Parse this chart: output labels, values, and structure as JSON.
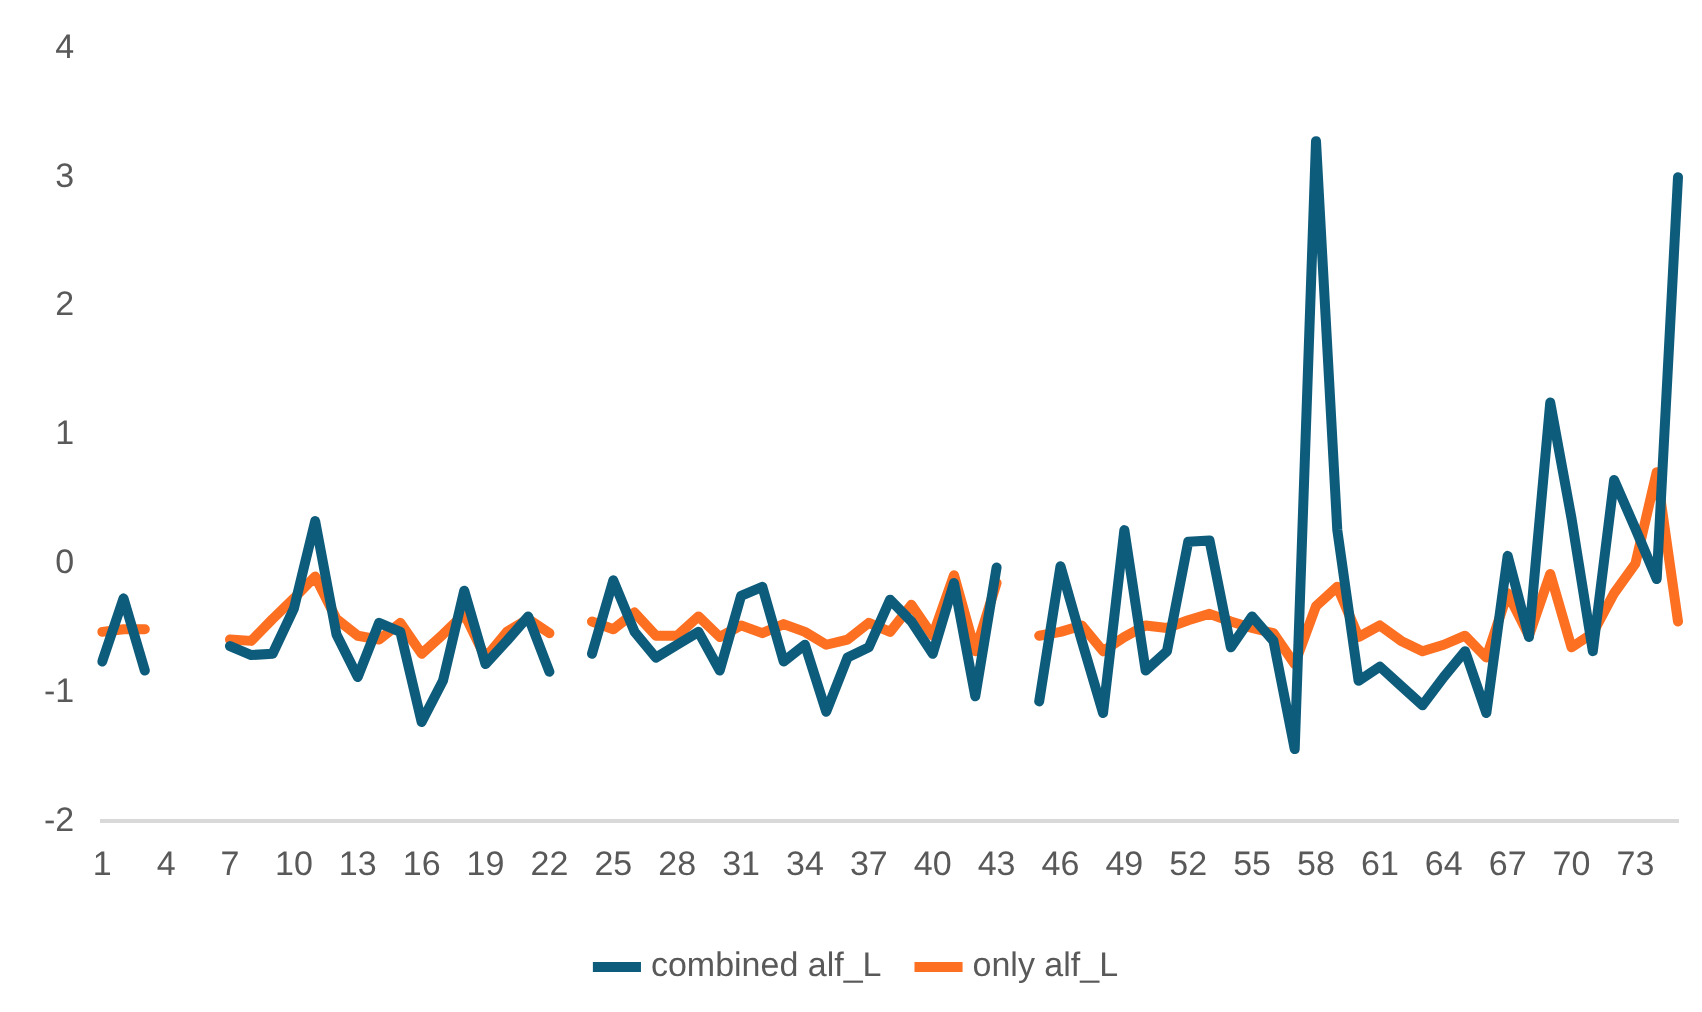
{
  "chart_data": {
    "type": "line",
    "categories": [
      "1",
      null,
      null,
      "4",
      null,
      null,
      "7",
      null,
      null,
      "10",
      null,
      null,
      "13",
      null,
      null,
      "16",
      null,
      null,
      "19",
      null,
      null,
      "22",
      null,
      null,
      "25",
      null,
      null,
      "28",
      null,
      null,
      "31",
      null,
      null,
      "34",
      null,
      null,
      "37",
      null,
      null,
      "40",
      null,
      null,
      "43",
      null,
      null,
      "46",
      null,
      null,
      "49",
      null,
      null,
      "52",
      null,
      null,
      "55",
      null,
      null,
      "58",
      null,
      null,
      "61",
      null,
      null,
      "64",
      null,
      null,
      "67",
      null,
      null,
      "70",
      null,
      null,
      "73",
      null,
      null
    ],
    "series": [
      {
        "name": "combined alf_L",
        "color": "#0e5c7c",
        "values": [
          -0.76,
          -0.27,
          -0.83,
          null,
          null,
          null,
          -0.64,
          -0.71,
          -0.7,
          -0.35,
          0.33,
          -0.55,
          -0.88,
          -0.46,
          -0.53,
          -1.23,
          -0.91,
          -0.21,
          -0.78,
          -0.6,
          -0.41,
          -0.84,
          null,
          -0.7,
          -0.13,
          -0.53,
          -0.73,
          -0.63,
          -0.53,
          -0.83,
          -0.25,
          -0.18,
          -0.76,
          -0.63,
          -1.15,
          -0.73,
          -0.65,
          -0.28,
          -0.45,
          -0.7,
          -0.15,
          -1.03,
          -0.03,
          null,
          -1.07,
          -0.02,
          -0.6,
          -1.16,
          0.26,
          -0.83,
          -0.68,
          0.17,
          0.18,
          -0.65,
          -0.41,
          -0.6,
          -1.44,
          3.28,
          0.26,
          -0.91,
          -0.8,
          -0.95,
          -1.1,
          -0.88,
          -0.68,
          -1.16,
          0.06,
          -0.57,
          1.25,
          0.35,
          -0.68,
          0.65,
          0.27,
          -0.12,
          3.0
        ]
      },
      {
        "name": "only alf_L",
        "color": "#fd6f21",
        "values": [
          -0.53,
          -0.51,
          -0.51,
          null,
          null,
          null,
          -0.59,
          -0.6,
          -0.43,
          -0.27,
          -0.1,
          -0.43,
          -0.56,
          -0.59,
          -0.46,
          -0.7,
          -0.55,
          -0.39,
          -0.73,
          -0.53,
          -0.43,
          -0.54,
          null,
          -0.45,
          -0.51,
          -0.38,
          -0.56,
          -0.56,
          -0.41,
          -0.57,
          -0.48,
          -0.54,
          -0.47,
          -0.53,
          -0.63,
          -0.59,
          -0.46,
          -0.53,
          -0.32,
          -0.56,
          -0.09,
          -0.68,
          -0.15,
          null,
          -0.56,
          -0.53,
          -0.48,
          -0.68,
          -0.57,
          -0.48,
          -0.5,
          -0.44,
          -0.39,
          -0.45,
          -0.5,
          -0.54,
          -0.78,
          -0.33,
          -0.18,
          -0.57,
          -0.48,
          -0.6,
          -0.68,
          -0.63,
          -0.56,
          -0.73,
          -0.23,
          -0.56,
          -0.08,
          -0.65,
          -0.54,
          -0.23,
          0.0,
          0.71,
          -0.45
        ]
      }
    ],
    "ylim": [
      -2,
      4
    ],
    "yticks": [
      -2,
      -1,
      0,
      1,
      2,
      3,
      4
    ],
    "grid": false,
    "legend": "bottom",
    "marker": "none",
    "line_style": "solid"
  }
}
